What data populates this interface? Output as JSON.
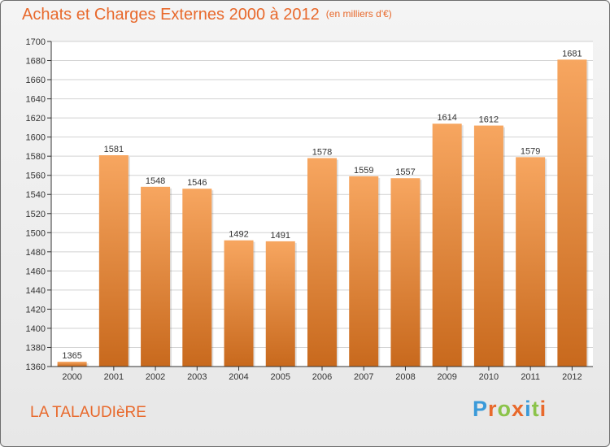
{
  "header": {
    "title": "Achats et Charges Externes 2000 à 2012",
    "unit": "(en milliers d'€)"
  },
  "footer": {
    "place": "LA TALAUDIèRE",
    "logo_text": "Proxiti",
    "logo_colors": [
      "#3a9ad9",
      "#e8692c",
      "#8bc34a",
      "#e8692c",
      "#3a9ad9",
      "#8bc34a",
      "#e8692c"
    ]
  },
  "colors": {
    "bar_top": "#f7a660",
    "bar_bottom": "#c8691d",
    "accent": "#e8692c"
  },
  "chart_data": {
    "type": "bar",
    "title": "Achats et Charges Externes 2000 à 2012",
    "categories": [
      "2000",
      "2001",
      "2002",
      "2003",
      "2004",
      "2005",
      "2006",
      "2007",
      "2008",
      "2009",
      "2010",
      "2011",
      "2012"
    ],
    "values": [
      1365,
      1581,
      1548,
      1546,
      1492,
      1491,
      1578,
      1559,
      1557,
      1614,
      1612,
      1579,
      1681
    ],
    "ylim": [
      1360,
      1700
    ],
    "yticks": [
      1360,
      1380,
      1400,
      1420,
      1440,
      1460,
      1480,
      1500,
      1520,
      1540,
      1560,
      1580,
      1600,
      1620,
      1640,
      1660,
      1680,
      1700
    ],
    "grid": true,
    "xlabel": "",
    "ylabel": ""
  }
}
